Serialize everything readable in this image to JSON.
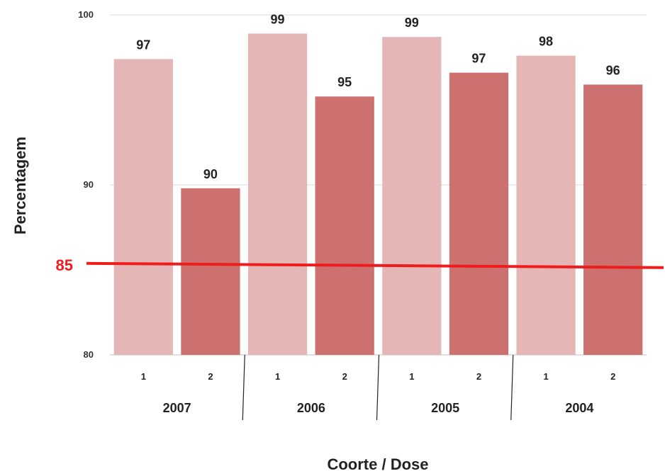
{
  "chart_data": {
    "type": "bar",
    "title": "",
    "xlabel": "Coorte / Dose",
    "ylabel": "Percentagem",
    "ylim": [
      80,
      100
    ],
    "yticks": [
      80,
      90,
      100
    ],
    "groups": [
      "2007",
      "2006",
      "2005",
      "2004"
    ],
    "categories": [
      "1",
      "2",
      "1",
      "2",
      "1",
      "2",
      "1",
      "2"
    ],
    "values": [
      97.4,
      89.8,
      98.9,
      95.2,
      98.7,
      96.6,
      97.6,
      95.9
    ],
    "data_labels": [
      "97",
      "90",
      "99",
      "95",
      "99",
      "97",
      "98",
      "96"
    ],
    "reference_line": {
      "value": 85.3,
      "label": "85",
      "color": "#ee1c1c"
    },
    "dose_colors": {
      "1": "#e5b6b6",
      "2": "#cc7070"
    },
    "grid": true,
    "legend": "none"
  }
}
